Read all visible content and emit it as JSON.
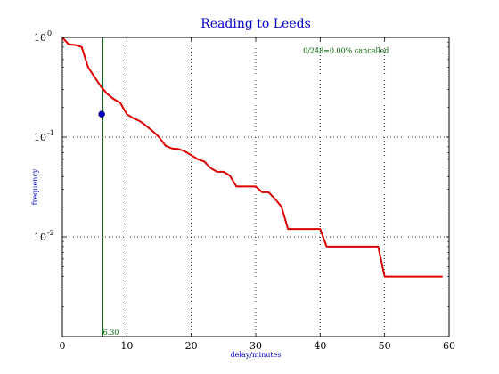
{
  "chart_data": {
    "type": "line",
    "title": "Reading to Leeds",
    "xlabel": "delay/minutes",
    "ylabel": "frequency",
    "xlim": [
      0,
      60
    ],
    "ylim": [
      0.001,
      1.0
    ],
    "yscale": "log",
    "grid": true,
    "x_ticks": [
      0,
      10,
      20,
      30,
      40,
      50,
      60
    ],
    "x_tick_labels": [
      "0",
      "10",
      "20",
      "30",
      "40",
      "50",
      "60"
    ],
    "y_ticks": [
      1.0,
      0.1,
      0.01
    ],
    "y_tick_labels": [
      {
        "base": "10",
        "exp": "0"
      },
      {
        "base": "10",
        "exp": "-1"
      },
      {
        "base": "10",
        "exp": "-2"
      }
    ],
    "series": [
      {
        "color": "#dd0000",
        "x": [
          0,
          1,
          2,
          3,
          4,
          5,
          6,
          7,
          8,
          9,
          10,
          11,
          12,
          13,
          14,
          15,
          16,
          17,
          18,
          19,
          20,
          21,
          22,
          23,
          24,
          25,
          26,
          27,
          28,
          29,
          30,
          31,
          32,
          33,
          34,
          35,
          36,
          37,
          38,
          39,
          40,
          41,
          42,
          43,
          44,
          45,
          46,
          47,
          48,
          49,
          50,
          51,
          52,
          53,
          54,
          55,
          56,
          57,
          58,
          59
        ],
        "y": [
          1.0,
          0.85,
          0.84,
          0.8,
          0.5,
          0.4,
          0.32,
          0.27,
          0.24,
          0.22,
          0.17,
          0.155,
          0.145,
          0.13,
          0.115,
          0.1,
          0.082,
          0.077,
          0.076,
          0.072,
          0.066,
          0.06,
          0.057,
          0.049,
          0.045,
          0.045,
          0.041,
          0.032,
          0.032,
          0.032,
          0.032,
          0.028,
          0.028,
          0.024,
          0.02,
          0.012,
          0.012,
          0.012,
          0.012,
          0.012,
          0.012,
          0.008,
          0.008,
          0.008,
          0.008,
          0.008,
          0.008,
          0.008,
          0.008,
          0.008,
          0.004,
          0.004,
          0.004,
          0.004,
          0.004,
          0.004,
          0.004,
          0.004,
          0.004,
          0.004
        ]
      }
    ],
    "marker_point": {
      "x": 6.1,
      "y": 0.17,
      "color": "#0000cc"
    },
    "vertical_line": {
      "x": 6.3,
      "label": "6.30",
      "color": "#006400"
    },
    "annotation": {
      "text": "0/248=0.00% cancelled",
      "x": 44,
      "y": 0.7,
      "color": "#006400"
    }
  }
}
